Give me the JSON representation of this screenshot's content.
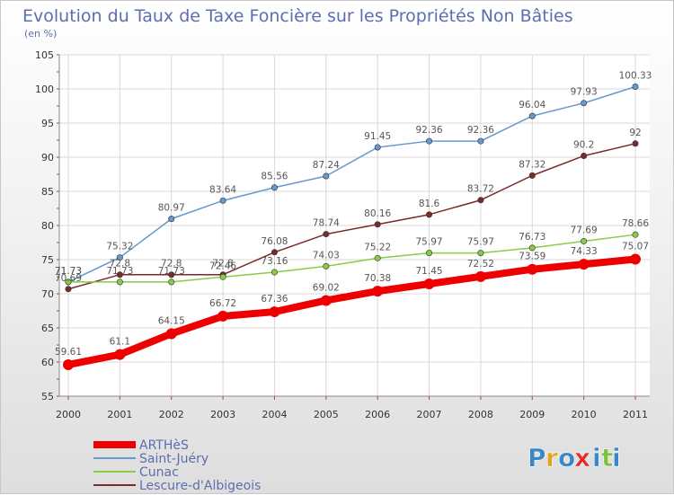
{
  "chart_data": {
    "type": "line",
    "title": "Evolution du Taux de Taxe Foncière sur les Propriétés Non Bâties",
    "subtitle": "(en %)",
    "x": [
      "2000",
      "2001",
      "2002",
      "2003",
      "2004",
      "2005",
      "2006",
      "2007",
      "2008",
      "2009",
      "2010",
      "2011"
    ],
    "ylim": [
      55,
      105
    ],
    "yticks": [
      "55",
      "60",
      "65",
      "70",
      "75",
      "80",
      "85",
      "90",
      "95",
      "100",
      "105"
    ],
    "grid": true,
    "legend_position": "bottom-left",
    "series": [
      {
        "name": "ARTHèS",
        "color": "#ee0000",
        "values": [
          59.61,
          61.1,
          64.15,
          66.72,
          67.36,
          69.02,
          70.38,
          71.45,
          72.52,
          73.59,
          74.33,
          75.07
        ],
        "labels": [
          "59.61",
          "61.1",
          "64.15",
          "66.72",
          "67.36",
          "69.02",
          "70.38",
          "71.45",
          "72.52",
          "73.59",
          "74.33",
          "75.07"
        ]
      },
      {
        "name": "Saint-Juéry",
        "color": "#6699cc",
        "values": [
          71.73,
          75.32,
          80.97,
          83.64,
          85.56,
          87.24,
          91.45,
          92.36,
          92.36,
          96.04,
          97.93,
          100.33
        ],
        "labels": [
          "71.73",
          "75.32",
          "80.97",
          "83.64",
          "85.56",
          "87.24",
          "91.45",
          "92.36",
          "92.36",
          "96.04",
          "97.93",
          "100.33"
        ]
      },
      {
        "name": "Cunac",
        "color": "#88cc44",
        "values": [
          71.73,
          71.73,
          71.73,
          72.46,
          73.16,
          74.03,
          75.22,
          75.97,
          75.97,
          76.73,
          77.69,
          78.66
        ],
        "labels": [
          "71.73",
          "71.73",
          "71.73",
          "72.46",
          "73.16",
          "74.03",
          "75.22",
          "75.97",
          "75.97",
          "76.73",
          "77.69",
          "78.66"
        ]
      },
      {
        "name": "Lescure-d'Albigeois",
        "color": "#7a2a2a",
        "values": [
          70.69,
          72.8,
          72.8,
          72.8,
          76.08,
          78.74,
          80.16,
          81.6,
          83.72,
          87.32,
          90.2,
          92
        ],
        "labels": [
          "70.69",
          "72.8",
          "72.8",
          "72.8",
          "76.08",
          "78.74",
          "80.16",
          "81.6",
          "83.72",
          "87.32",
          "90.2",
          "92"
        ]
      }
    ]
  },
  "logo": {
    "letters": [
      "P",
      "r",
      "o",
      "x",
      "i",
      "t",
      "i"
    ],
    "colors": [
      "#3a87c8",
      "#e8a020",
      "#3a87c8",
      "#e03030",
      "#3a87c8",
      "#80c040",
      "#3a87c8"
    ]
  }
}
